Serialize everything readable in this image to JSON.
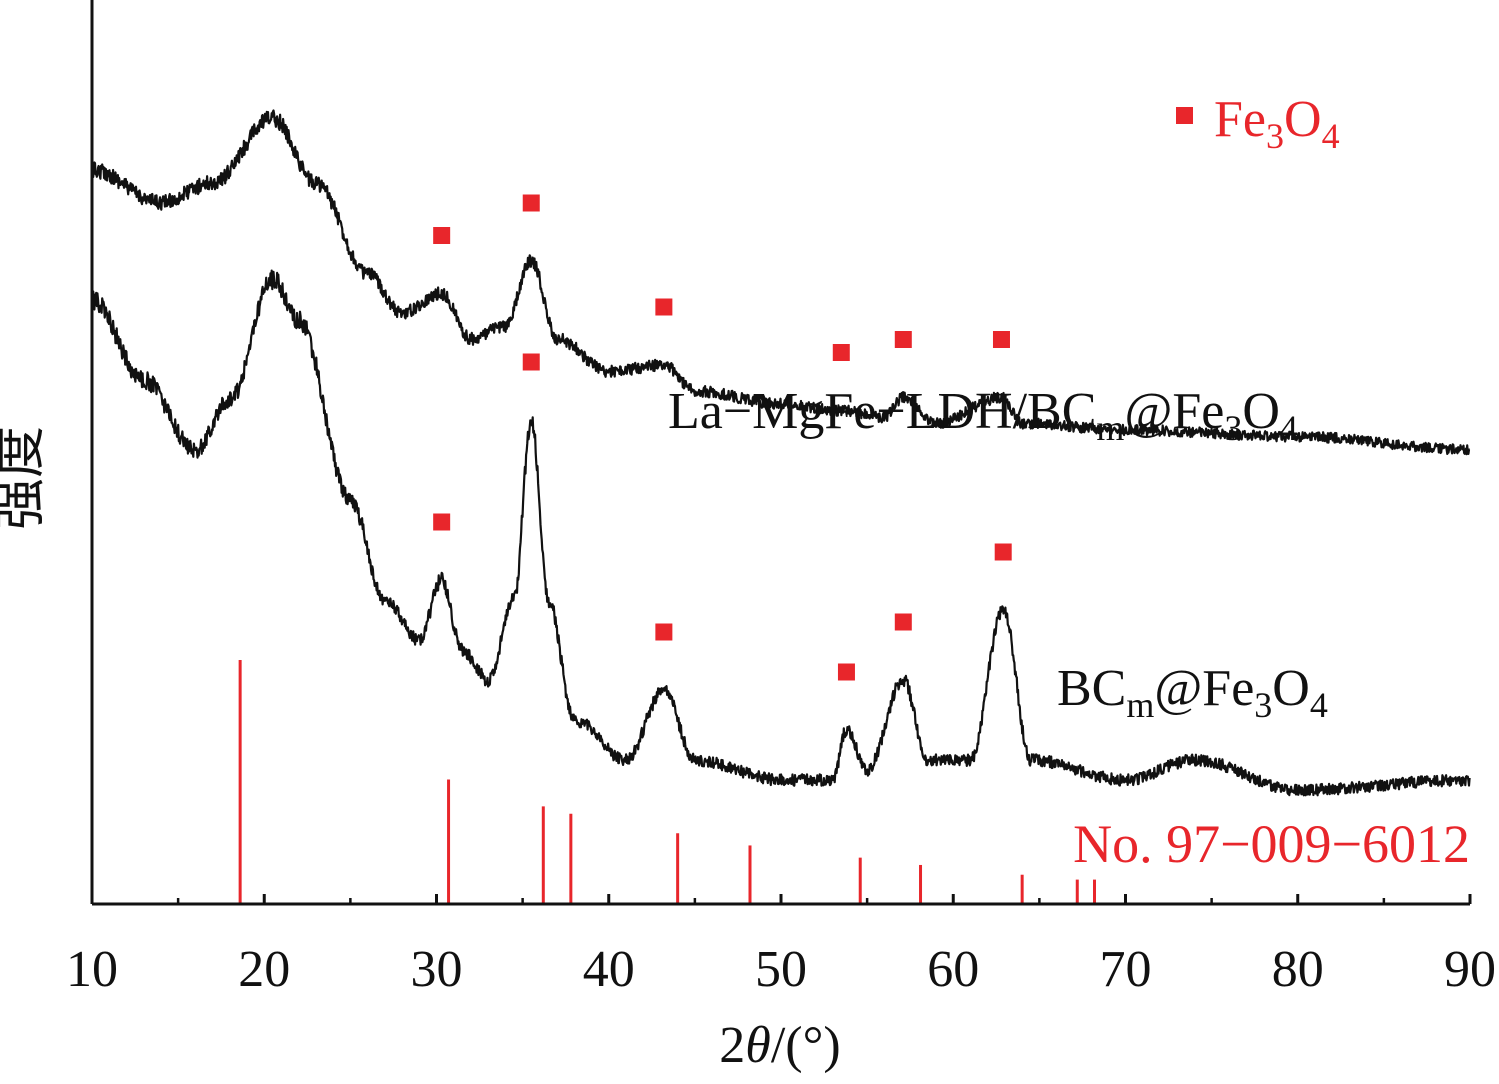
{
  "chart_data": {
    "type": "line",
    "xlabel_number": "2",
    "xlabel_symbol": "θ",
    "xlabel_unit": "/(°)",
    "ylabel": "强度",
    "xlim": [
      10,
      90
    ],
    "x_ticks": [
      "10",
      "20",
      "30",
      "40",
      "50",
      "60",
      "70",
      "80",
      "90"
    ],
    "legend": {
      "marker": "square",
      "label_base": "Fe",
      "label_sub1": "3",
      "label_mid": "O",
      "label_sub2": "4",
      "position": "top-right"
    },
    "series": [
      {
        "name": "La-MgFe-LDH/BCm@Fe3O4",
        "name_parts": [
          "La−MgFe−LDH/BC",
          "m",
          "@Fe",
          "3",
          "O",
          "4"
        ],
        "color": "#111111",
        "offset_level": "upper",
        "profile": [
          [
            10,
            0.6
          ],
          [
            14,
            0.55
          ],
          [
            17,
            0.58
          ],
          [
            20.5,
            0.68
          ],
          [
            23,
            0.58
          ],
          [
            26,
            0.44
          ],
          [
            28,
            0.38
          ],
          [
            30.3,
            0.41
          ],
          [
            32,
            0.34
          ],
          [
            34,
            0.36
          ],
          [
            35.5,
            0.46
          ],
          [
            37,
            0.34
          ],
          [
            40,
            0.29
          ],
          [
            43.2,
            0.3
          ],
          [
            45,
            0.26
          ],
          [
            50,
            0.24
          ],
          [
            53.5,
            0.23
          ],
          [
            56,
            0.22
          ],
          [
            57.1,
            0.25
          ],
          [
            59,
            0.21
          ],
          [
            62.8,
            0.25
          ],
          [
            64,
            0.21
          ],
          [
            70,
            0.2
          ],
          [
            80,
            0.19
          ],
          [
            90,
            0.17
          ]
        ],
        "peaks_marked": [
          30.3,
          35.5,
          43.2,
          53.5,
          57.1,
          62.8
        ]
      },
      {
        "name": "BCm@Fe3O4",
        "name_parts": [
          "BC",
          "m",
          "@Fe",
          "3",
          "O",
          "4"
        ],
        "color": "#111111",
        "offset_level": "lower",
        "profile": [
          [
            10,
            0.6
          ],
          [
            13,
            0.52
          ],
          [
            16,
            0.45
          ],
          [
            18,
            0.5
          ],
          [
            20.5,
            0.62
          ],
          [
            22,
            0.58
          ],
          [
            25,
            0.4
          ],
          [
            27,
            0.3
          ],
          [
            29,
            0.26
          ],
          [
            30.3,
            0.32
          ],
          [
            31.5,
            0.25
          ],
          [
            33,
            0.22
          ],
          [
            34.5,
            0.3
          ],
          [
            35.5,
            0.48
          ],
          [
            36.5,
            0.3
          ],
          [
            38,
            0.18
          ],
          [
            41,
            0.14
          ],
          [
            43.2,
            0.21
          ],
          [
            45,
            0.14
          ],
          [
            50,
            0.12
          ],
          [
            53,
            0.12
          ],
          [
            53.8,
            0.17
          ],
          [
            55,
            0.13
          ],
          [
            57.1,
            0.22
          ],
          [
            58.5,
            0.14
          ],
          [
            61,
            0.14
          ],
          [
            62.9,
            0.29
          ],
          [
            64.5,
            0.14
          ],
          [
            70,
            0.12
          ],
          [
            74,
            0.14
          ],
          [
            80,
            0.11
          ],
          [
            90,
            0.12
          ]
        ],
        "peaks_marked": [
          30.3,
          35.5,
          43.2,
          53.8,
          57.1,
          62.9
        ]
      }
    ],
    "reference": {
      "label": "No. 97−009−6012",
      "color": "#e8262b",
      "lines": [
        [
          18.6,
          1.0
        ],
        [
          30.7,
          0.51
        ],
        [
          36.2,
          0.4
        ],
        [
          37.8,
          0.37
        ],
        [
          44.0,
          0.29
        ],
        [
          48.2,
          0.24
        ],
        [
          54.6,
          0.19
        ],
        [
          58.1,
          0.16
        ],
        [
          64.0,
          0.12
        ],
        [
          67.2,
          0.1
        ],
        [
          68.2,
          0.1
        ]
      ]
    },
    "marker_color": "#e8262b",
    "grid": false
  }
}
